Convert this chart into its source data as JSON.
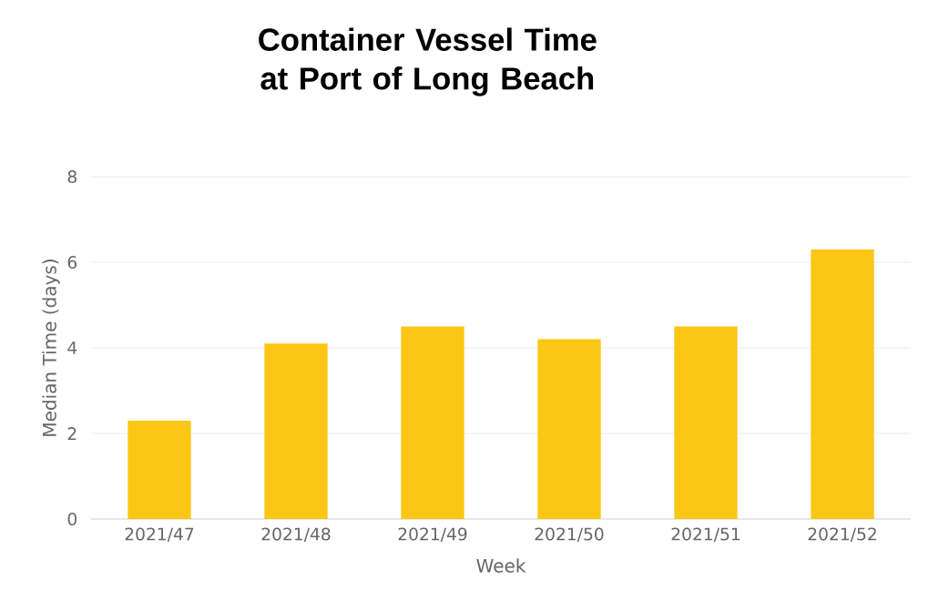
{
  "chart_data": {
    "type": "bar",
    "title": "Container Vessel Time at Port of Long Beach",
    "xlabel": "Week",
    "ylabel": "Median Time (days)",
    "categories": [
      "2021/47",
      "2021/48",
      "2021/49",
      "2021/50",
      "2021/51",
      "2021/52"
    ],
    "values": [
      2.3,
      4.1,
      4.5,
      4.2,
      4.5,
      6.3
    ],
    "color": "#fcc614",
    "ylim": [
      0,
      8
    ],
    "yticks": [
      0,
      2,
      4,
      6,
      8
    ],
    "grid": "y"
  }
}
